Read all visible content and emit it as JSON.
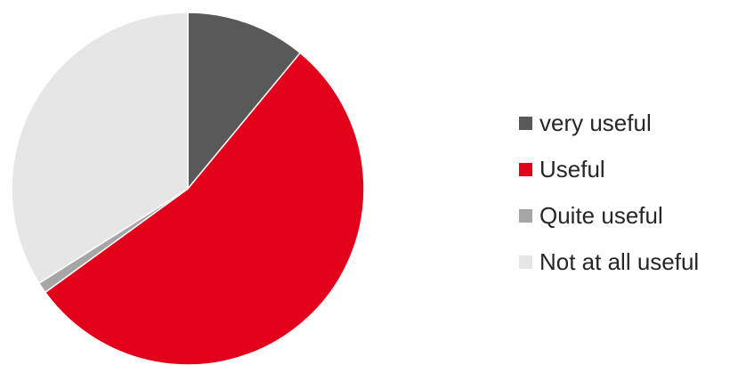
{
  "chart_data": {
    "type": "pie",
    "title": "",
    "legend_position": "right",
    "slices": [
      {
        "label": "very useful",
        "value": 11,
        "color": "#595959"
      },
      {
        "label": "Useful",
        "value": 54,
        "color": "#e2001a"
      },
      {
        "label": "Quite useful",
        "value": 1,
        "color": "#a6a6a6"
      },
      {
        "label": "Not at all useful",
        "value": 34,
        "color": "#e6e6e6"
      }
    ]
  }
}
